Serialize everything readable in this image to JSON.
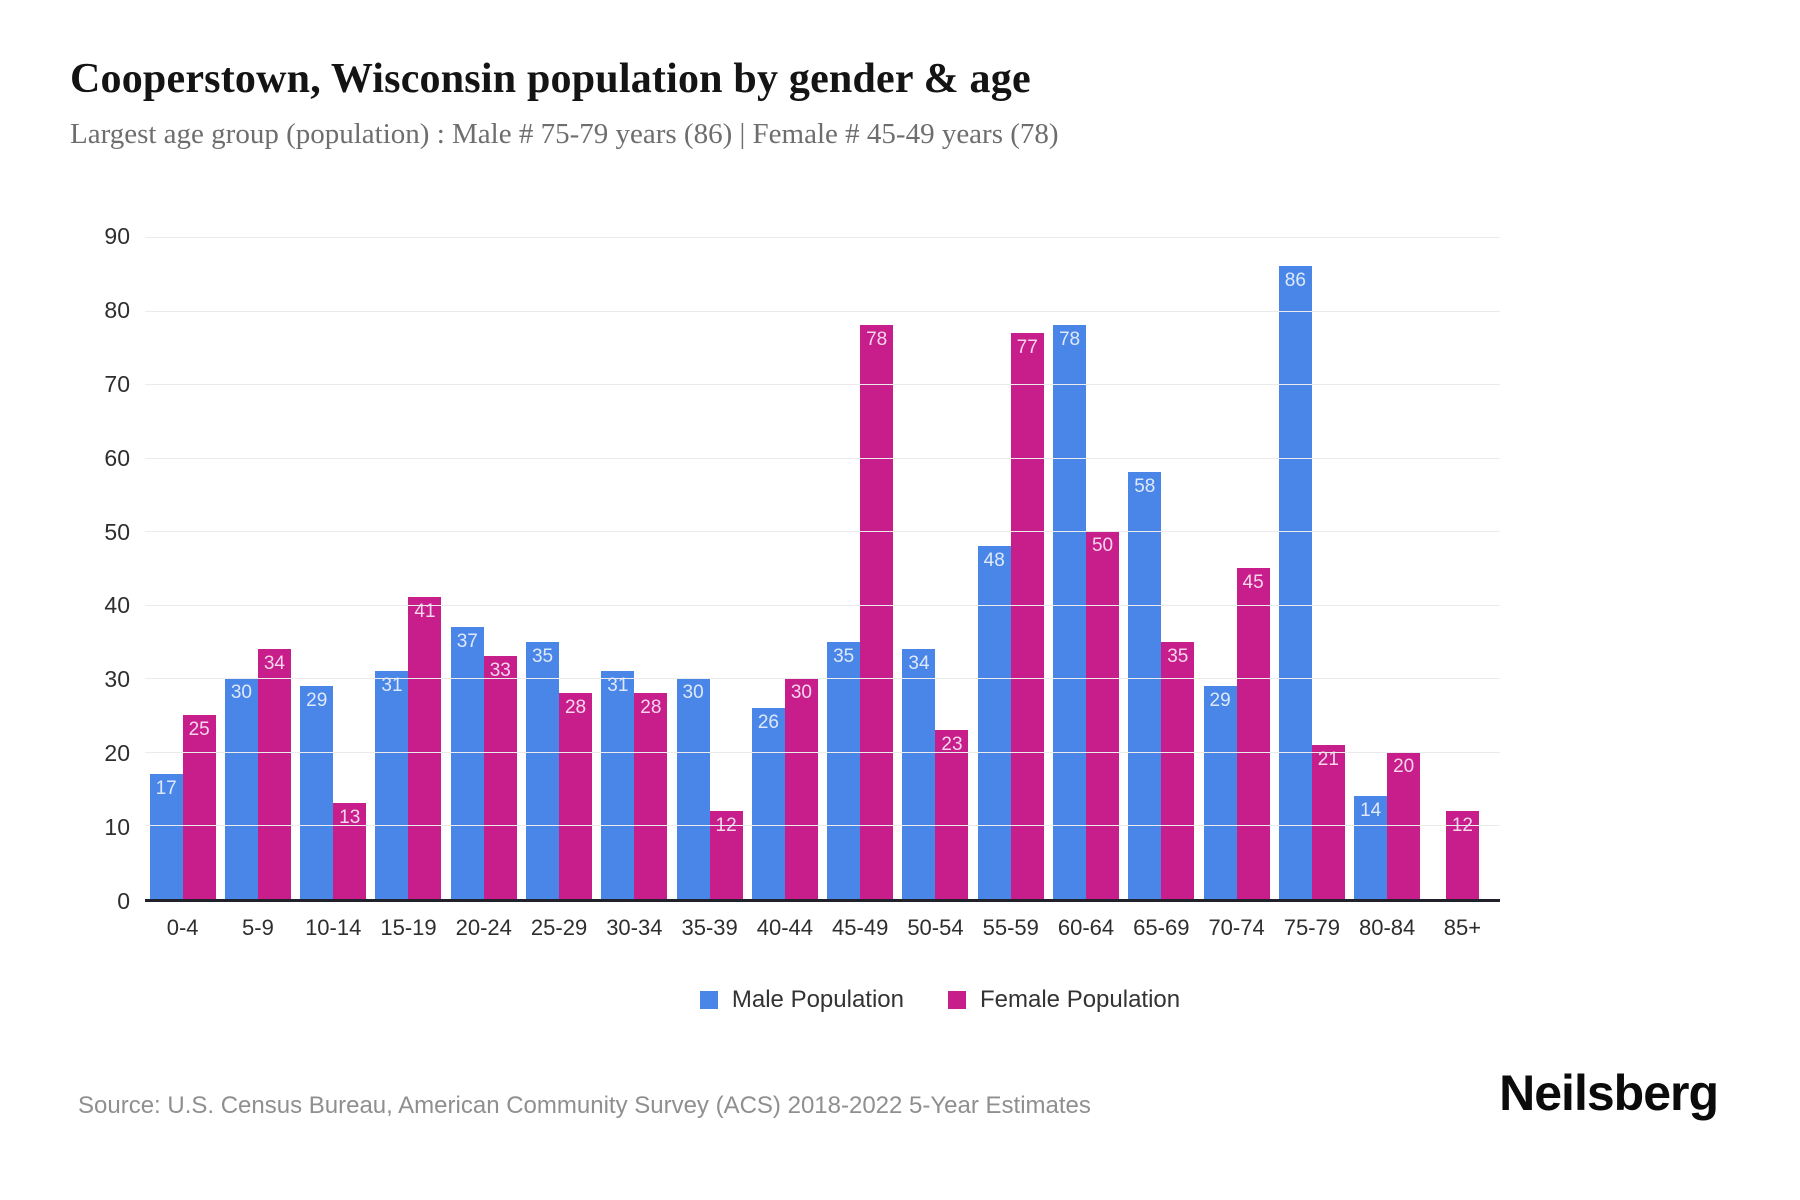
{
  "header": {
    "title": "Cooperstown, Wisconsin population by gender & age",
    "subtitle": "Largest age group (population) : Male # 75-79 years (86) | Female # 45-49 years (78)"
  },
  "chart_data": {
    "type": "bar",
    "title": "Cooperstown, Wisconsin population by gender & age",
    "categories": [
      "0-4",
      "5-9",
      "10-14",
      "15-19",
      "20-24",
      "25-29",
      "30-34",
      "35-39",
      "40-44",
      "45-49",
      "50-54",
      "55-59",
      "60-64",
      "65-69",
      "70-74",
      "75-79",
      "80-84",
      "85+"
    ],
    "series": [
      {
        "name": "Male Population",
        "color": "#4a86e8",
        "values": [
          17,
          30,
          29,
          31,
          37,
          35,
          31,
          30,
          26,
          35,
          34,
          48,
          78,
          58,
          29,
          86,
          14,
          0
        ]
      },
      {
        "name": "Female Population",
        "color": "#c81e8c",
        "values": [
          25,
          34,
          13,
          41,
          33,
          28,
          28,
          12,
          30,
          78,
          23,
          77,
          50,
          35,
          45,
          21,
          20,
          12
        ]
      }
    ],
    "xlabel": "",
    "ylabel": "",
    "ylim": [
      0,
      90
    ],
    "yticks": [
      0,
      10,
      20,
      30,
      40,
      50,
      60,
      70,
      80,
      90
    ],
    "grid": true,
    "legend_position": "bottom",
    "bar_value_labels": true
  },
  "footer": {
    "source": "Source: U.S. Census Bureau, American Community Survey (ACS) 2018-2022 5-Year Estimates",
    "brand": "Neilsberg"
  }
}
